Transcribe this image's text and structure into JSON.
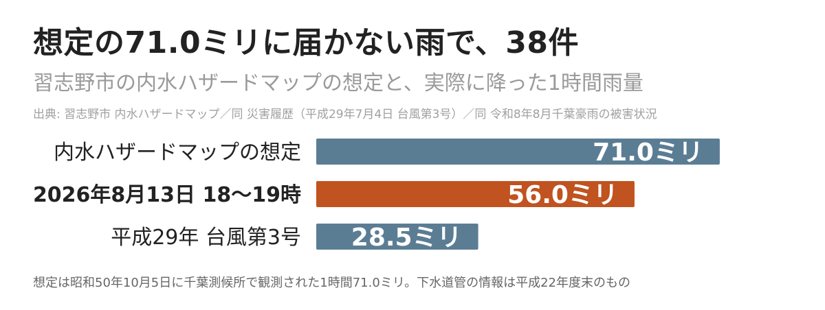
{
  "title": "想定の71.0ミリに届かない雨で、38件",
  "subtitle": "習志野市の内水ハザードマップの想定と、実際に降った1時間雨量",
  "source": "出典: 習志野市 内水ハザードマップ／同 災害履歴（平成29年7月4日 台風第3号）／同 令和8年8月千葉豪雨の被害状況",
  "note": "想定は昭和50年10月5日に千葉測候所で観測された1時間71.0ミリ。下水道管の情報は平成22年度末のもの",
  "colors": {
    "blue": "#5b7d94",
    "orange": "#c0531f",
    "label_text": "#222222"
  },
  "chart_data": {
    "type": "bar",
    "orientation": "horizontal",
    "unit": "ミリ",
    "categories": [
      "内水ハザードマップの想定",
      "2026年8月13日 18〜19時",
      "平成29年 台風第3号"
    ],
    "values": [
      71.0,
      56.0,
      28.5
    ],
    "value_labels": [
      "71.0ミリ",
      "56.0ミリ",
      "28.5ミリ"
    ],
    "bold_categories": [
      false,
      true,
      false
    ],
    "bar_colors": [
      "#5b7d94",
      "#c0531f",
      "#5b7d94"
    ],
    "xlim": [
      0,
      75
    ],
    "grid": false,
    "legend": "none"
  }
}
